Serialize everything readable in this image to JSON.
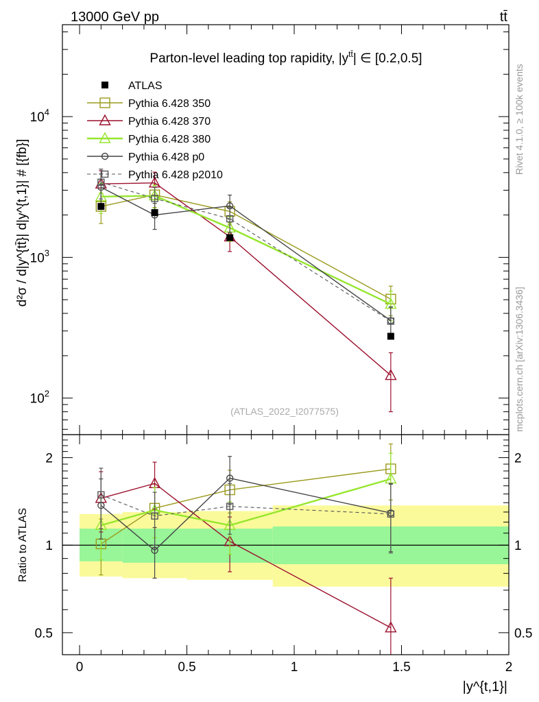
{
  "header": {
    "energy_label": "13000 GeV pp",
    "process_label": "tt̄"
  },
  "side_labels": {
    "rivet": "Rivet 4.1.0, ≥ 100k events",
    "mcplots": "mcplots.cern.ch [arXiv:1306.3436]"
  },
  "colors": {
    "atlas": "#000000",
    "p350": "#9a9a1c",
    "p370": "#9b0f2d",
    "p380": "#96e62d",
    "p0": "#444444",
    "p2010": "#555555",
    "band_inner": "#98f598",
    "band_outer": "#fafa9b"
  },
  "chart_data": {
    "type": "line",
    "title_prefix": "Parton-level leading top rapidity, |y",
    "title_sup": "tt̄",
    "title_suffix": "| ∈ [0.2,0.5]",
    "ylabel": "d²σ / d|y^{tt̄}| d|y^{t,1}| # [{fb}]",
    "ratio_ylabel": "Ratio to ATLAS",
    "xlabel": "|y^{t,1}|",
    "analysis_id": "(ATLAS_2022_I2077575)",
    "xlim": [
      -0.08,
      2.0
    ],
    "ylim": [
      55,
      45000
    ],
    "ratio_ylim": [
      0.42,
      2.4
    ],
    "yscale": "log",
    "x_ticks": [
      {
        "value": 0,
        "label": "0"
      },
      {
        "value": 0.5,
        "label": "0.5"
      },
      {
        "value": 1,
        "label": "1"
      },
      {
        "value": 1.5,
        "label": "1.5"
      },
      {
        "value": 2,
        "label": "2"
      }
    ],
    "y_ticks": [
      {
        "value": 100,
        "base": "10",
        "exp": "2"
      },
      {
        "value": 1000,
        "base": "10",
        "exp": "3"
      },
      {
        "value": 10000,
        "base": "10",
        "exp": "4"
      }
    ],
    "ratio_ticks": [
      {
        "value": 0.5,
        "label": "0.5"
      },
      {
        "value": 1,
        "label": "1"
      },
      {
        "value": 2,
        "label": "2"
      }
    ],
    "bins": [
      [
        0,
        0.2
      ],
      [
        0.2,
        0.5
      ],
      [
        0.5,
        0.9
      ],
      [
        0.9,
        2.0
      ]
    ],
    "x": [
      0.1,
      0.35,
      0.7,
      1.45
    ],
    "data": {
      "name": "ATLAS",
      "values": [
        2300,
        2080,
        1380,
        275
      ],
      "band_inner": [
        [
          0.88,
          1.14
        ],
        [
          0.87,
          1.14
        ],
        [
          0.87,
          1.14
        ],
        [
          0.86,
          1.16
        ]
      ],
      "band_outer": [
        [
          0.78,
          1.28
        ],
        [
          0.77,
          1.3
        ],
        [
          0.76,
          1.31
        ],
        [
          0.72,
          1.37
        ]
      ]
    },
    "series": [
      {
        "name": "Pythia 6.428 350",
        "color_key": "p350",
        "marker": "open-square",
        "dashed": false,
        "line_width": 1.4,
        "values": [
          2300,
          2780,
          2120,
          505
        ],
        "errors": [
          560,
          520,
          360,
          120
        ],
        "ratio": [
          1.01,
          1.34,
          1.55,
          1.83
        ],
        "ratio_errors": [
          0.22,
          0.28,
          0.26,
          0.4
        ]
      },
      {
        "name": "Pythia 6.428 370",
        "color_key": "p370",
        "marker": "open-triangle",
        "dashed": false,
        "line_width": 1.4,
        "values": [
          3330,
          3380,
          1400,
          145
        ],
        "errors": [
          800,
          650,
          300,
          65
        ],
        "ratio": [
          1.45,
          1.63,
          1.03,
          0.52
        ],
        "ratio_errors": [
          0.34,
          0.3,
          0.22,
          0.25
        ]
      },
      {
        "name": "Pythia 6.428 380",
        "color_key": "p380",
        "marker": "open-triangle",
        "dashed": false,
        "line_width": 2.4,
        "values": [
          2700,
          2740,
          1620,
          465
        ],
        "errors": [
          650,
          500,
          320,
          110
        ],
        "ratio": [
          1.17,
          1.32,
          1.17,
          1.69
        ],
        "ratio_errors": [
          0.28,
          0.26,
          0.24,
          0.38
        ]
      },
      {
        "name": "Pythia 6.428 p0",
        "color_key": "p0",
        "marker": "open-circle",
        "dashed": false,
        "line_width": 1.4,
        "values": [
          3150,
          2000,
          2320,
          355
        ],
        "errors": [
          760,
          420,
          450,
          90
        ],
        "ratio": [
          1.37,
          0.96,
          1.7,
          1.29
        ],
        "ratio_errors": [
          0.32,
          0.19,
          0.32,
          0.34
        ]
      },
      {
        "name": "Pythia 6.428 p2010",
        "color_key": "p2010",
        "marker": "open-square-small",
        "dashed": true,
        "line_width": 1.1,
        "values": [
          3420,
          2620,
          1880,
          352
        ],
        "errors": [
          820,
          520,
          380,
          90
        ],
        "ratio": [
          1.49,
          1.26,
          1.36,
          1.28
        ],
        "ratio_errors": [
          0.35,
          0.26,
          0.27,
          0.34
        ]
      }
    ]
  }
}
